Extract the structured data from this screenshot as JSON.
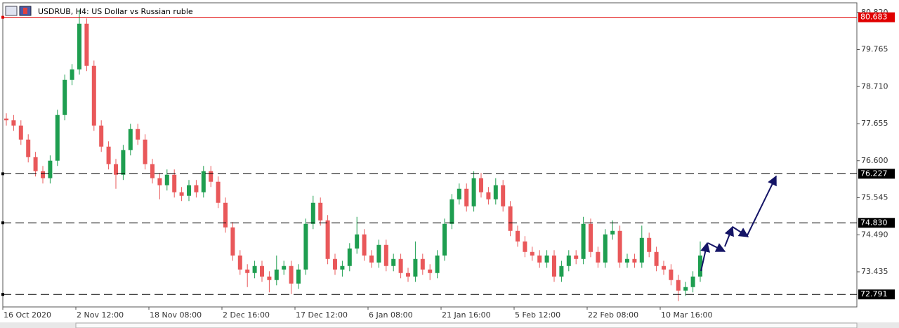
{
  "chart_data": {
    "type": "candlestick",
    "title": "USDRUB, H4:  US Dollar vs Russian ruble",
    "categories": [
      "16 Oct 2020",
      null,
      null,
      null,
      null,
      null,
      null,
      null,
      null,
      null,
      "2 Nov 12:00",
      null,
      null,
      null,
      null,
      null,
      null,
      null,
      null,
      null,
      "18 Nov 08:00",
      null,
      null,
      null,
      null,
      null,
      null,
      null,
      null,
      null,
      "2 Dec 16:00",
      null,
      null,
      null,
      null,
      null,
      null,
      null,
      null,
      null,
      "17 Dec 12:00",
      null,
      null,
      null,
      null,
      null,
      null,
      null,
      null,
      null,
      "6 Jan 08:00",
      null,
      null,
      null,
      null,
      null,
      null,
      null,
      null,
      null,
      "21 Jan 16:00",
      null,
      null,
      null,
      null,
      null,
      null,
      null,
      null,
      null,
      "5 Feb 12:00",
      null,
      null,
      null,
      null,
      null,
      null,
      null,
      null,
      null,
      "22 Feb 08:00",
      null,
      null,
      null,
      null,
      null,
      null,
      null,
      null,
      null,
      "10 Mar 16:00",
      null,
      null,
      null,
      null,
      null
    ],
    "open": [
      77.8,
      77.75,
      77.6,
      77.2,
      76.7,
      76.3,
      76.1,
      76.6,
      77.9,
      78.9,
      79.2,
      80.5,
      79.3,
      77.6,
      77.0,
      76.5,
      76.2,
      76.9,
      77.5,
      77.2,
      76.5,
      76.1,
      75.9,
      76.2,
      75.7,
      75.6,
      75.9,
      75.7,
      76.3,
      76.0,
      75.4,
      74.7,
      73.9,
      73.5,
      73.4,
      73.6,
      73.3,
      73.2,
      73.5,
      73.6,
      73.1,
      73.5,
      74.8,
      75.4,
      74.9,
      73.8,
      73.5,
      73.6,
      74.1,
      74.5,
      73.9,
      73.7,
      74.2,
      73.6,
      73.8,
      73.4,
      73.3,
      73.8,
      73.5,
      73.4,
      73.9,
      74.8,
      75.5,
      75.8,
      75.3,
      76.1,
      75.7,
      75.5,
      75.9,
      75.3,
      74.6,
      74.3,
      74.0,
      73.9,
      73.7,
      73.9,
      73.3,
      73.6,
      73.9,
      73.8,
      74.8,
      74.0,
      73.7,
      74.5,
      74.6,
      73.7,
      73.8,
      73.7,
      74.4,
      74.0,
      73.6,
      73.5,
      73.2,
      72.9,
      73.0,
      73.3
    ],
    "high": [
      77.95,
      77.9,
      77.75,
      77.35,
      76.85,
      76.45,
      76.75,
      78.05,
      79.05,
      79.35,
      80.9,
      80.65,
      79.45,
      77.75,
      77.15,
      76.65,
      77.05,
      77.65,
      77.65,
      77.35,
      76.65,
      76.25,
      76.35,
      76.35,
      75.85,
      76.05,
      76.05,
      76.45,
      76.45,
      76.15,
      75.55,
      74.85,
      74.05,
      73.65,
      73.75,
      73.75,
      73.45,
      73.9,
      73.75,
      73.75,
      73.65,
      74.95,
      75.6,
      75.55,
      75.05,
      73.95,
      73.75,
      74.25,
      75.0,
      74.65,
      74.05,
      74.35,
      74.35,
      73.95,
      73.95,
      73.55,
      74.3,
      73.95,
      73.65,
      74.05,
      74.95,
      75.65,
      75.95,
      75.95,
      76.3,
      76.25,
      75.85,
      76.1,
      76.05,
      75.45,
      74.75,
      74.45,
      74.15,
      74.05,
      74.05,
      74.05,
      73.75,
      74.05,
      74.05,
      75.0,
      74.95,
      74.15,
      74.65,
      74.9,
      74.75,
      73.95,
      73.95,
      74.75,
      74.55,
      74.15,
      73.75,
      73.65,
      73.35,
      73.15,
      73.45,
      74.3
    ],
    "low": [
      77.6,
      77.45,
      77.05,
      76.55,
      76.15,
      75.95,
      75.95,
      76.45,
      77.75,
      78.75,
      79.05,
      79.15,
      77.45,
      76.85,
      76.35,
      75.8,
      76.05,
      76.75,
      77.05,
      76.35,
      75.95,
      75.5,
      75.75,
      75.55,
      75.45,
      75.45,
      75.55,
      75.55,
      75.85,
      75.25,
      74.55,
      73.75,
      73.35,
      73.0,
      73.25,
      73.15,
      72.85,
      73.05,
      73.35,
      72.8,
      72.95,
      73.35,
      74.65,
      74.75,
      73.65,
      73.35,
      73.3,
      73.45,
      73.95,
      73.75,
      73.55,
      73.55,
      73.45,
      73.45,
      73.25,
      73.15,
      73.15,
      73.35,
      73.2,
      73.25,
      73.75,
      74.65,
      75.35,
      75.15,
      75.15,
      75.55,
      75.35,
      75.35,
      75.15,
      74.45,
      74.15,
      73.85,
      73.75,
      73.55,
      73.55,
      73.15,
      73.15,
      73.45,
      73.65,
      73.65,
      73.85,
      73.55,
      73.55,
      74.35,
      73.55,
      73.55,
      73.55,
      73.55,
      73.85,
      73.45,
      73.35,
      73.05,
      72.6,
      72.75,
      72.85,
      73.15
    ],
    "close": [
      77.75,
      77.6,
      77.2,
      76.7,
      76.3,
      76.1,
      76.6,
      77.9,
      78.9,
      79.2,
      80.5,
      79.3,
      77.6,
      77.0,
      76.5,
      76.2,
      76.9,
      77.5,
      77.2,
      76.5,
      76.1,
      75.9,
      76.2,
      75.7,
      75.6,
      75.9,
      75.7,
      76.3,
      76.0,
      75.4,
      74.7,
      73.9,
      73.5,
      73.4,
      73.6,
      73.3,
      73.2,
      73.5,
      73.6,
      73.1,
      73.5,
      74.8,
      75.4,
      74.9,
      73.8,
      73.5,
      73.6,
      74.1,
      74.5,
      73.9,
      73.7,
      74.2,
      73.6,
      73.8,
      73.4,
      73.3,
      73.8,
      73.5,
      73.4,
      73.9,
      74.8,
      75.5,
      75.8,
      75.3,
      76.1,
      75.7,
      75.5,
      75.9,
      75.3,
      74.6,
      74.3,
      74.0,
      73.9,
      73.7,
      73.9,
      73.3,
      73.6,
      73.9,
      73.8,
      74.8,
      74.0,
      73.7,
      74.5,
      74.6,
      73.7,
      73.8,
      73.7,
      74.4,
      74.0,
      73.6,
      73.5,
      73.2,
      72.9,
      73.0,
      73.3,
      73.9
    ],
    "up_color": "#1e9e50",
    "down_color": "#e9585a",
    "ylim": [
      72.435,
      81.095
    ],
    "yticks": [
      {
        "value": 80.82,
        "label": "80.820"
      },
      79.765,
      {
        "value": 78.71,
        "label": "78.710"
      },
      77.655,
      {
        "value": 76.6,
        "label": "76.600"
      },
      75.545,
      {
        "value": 74.49,
        "label": "74.490"
      },
      73.435
    ],
    "levels": [
      {
        "value": 80.683,
        "color": "#e00000",
        "style": "solid"
      },
      {
        "value": 76.227,
        "color": "#000000",
        "style": "dashed"
      },
      {
        "value": 74.83,
        "label": "74.830",
        "color": "#000000",
        "style": "dashed"
      },
      {
        "value": 72.791,
        "color": "#000000",
        "style": "dashed"
      }
    ]
  }
}
